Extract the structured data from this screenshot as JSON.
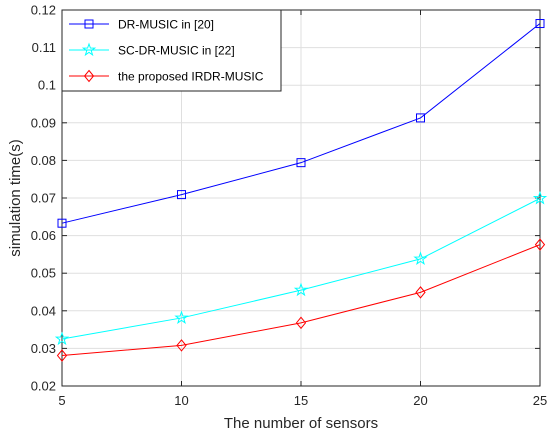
{
  "chart_data": {
    "type": "line",
    "xlabel": "The number of sensors",
    "ylabel": "simulation time(s)",
    "x": [
      5,
      10,
      15,
      20,
      25
    ],
    "xlim": [
      5,
      25
    ],
    "ylim": [
      0.02,
      0.12
    ],
    "xticks": [
      "5",
      "10",
      "15",
      "20",
      "25"
    ],
    "yticks": [
      "0.02",
      "0.03",
      "0.04",
      "0.05",
      "0.06",
      "0.07",
      "0.08",
      "0.09",
      "0.1",
      "0.11",
      "0.12"
    ],
    "grid": true,
    "legend_position": "top-left",
    "series": [
      {
        "name": "DR-MUSIC in [20]",
        "values": [
          0.0633,
          0.0709,
          0.0794,
          0.0913,
          0.1164
        ],
        "color": "#0000ff",
        "marker": "square"
      },
      {
        "name": "SC-DR-MUSIC in [22]",
        "values": [
          0.0325,
          0.0381,
          0.0455,
          0.0538,
          0.0699
        ],
        "color": "#00ffff",
        "marker": "star"
      },
      {
        "name": "the proposed IRDR-MUSIC",
        "values": [
          0.0281,
          0.0308,
          0.0368,
          0.0449,
          0.0576
        ],
        "color": "#ff0000",
        "marker": "diamond"
      }
    ]
  }
}
